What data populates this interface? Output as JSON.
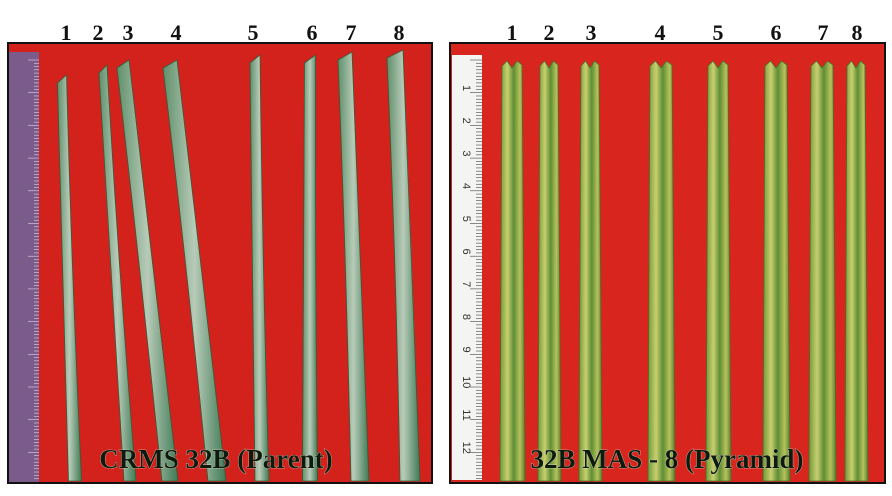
{
  "panels": [
    {
      "leaf_labels": [
        "1",
        "2",
        "3",
        "4",
        "5",
        "6",
        "7",
        "8"
      ],
      "caption": "CRMS 32B (Parent)"
    },
    {
      "leaf_labels": [
        "1",
        "2",
        "3",
        "4",
        "5",
        "6",
        "7",
        "8"
      ],
      "caption": "32B MAS - 8 (Pyramid)",
      "ruler_labels": [
        "1",
        "2",
        "3",
        "4",
        "5",
        "6",
        "7",
        "8",
        "9",
        "10",
        "11",
        "12"
      ]
    }
  ]
}
